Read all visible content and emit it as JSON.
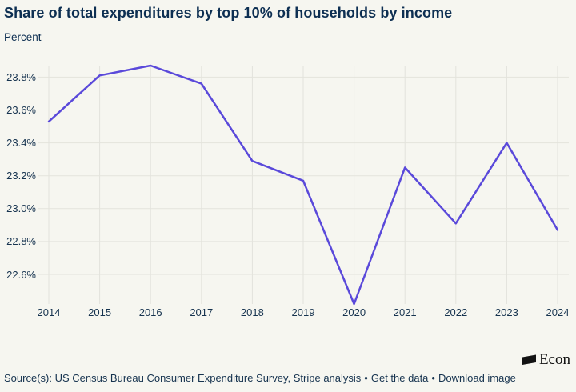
{
  "title": "Share of total expenditures by top 10% of households by income",
  "subtitle": "Percent",
  "footer": {
    "source_text": "Source(s): US Census Bureau Consumer Expenditure Survey, Stripe analysis",
    "separator": "•",
    "get_data_label": "Get the data",
    "download_label": "Download image",
    "brand": "Econ"
  },
  "colors": {
    "background": "#f6f6f0",
    "gridline": "#e3e3dc",
    "text": "#0d2f52",
    "line": "#5a49da",
    "logo": "#121212"
  },
  "chart_data": {
    "type": "line",
    "title": "Share of total expenditures by top 10% of households by income",
    "ylabel": "Percent",
    "xlabel": "",
    "x": [
      2014,
      2015,
      2016,
      2017,
      2018,
      2019,
      2020,
      2021,
      2022,
      2023,
      2024
    ],
    "values": [
      23.53,
      23.81,
      23.87,
      23.76,
      23.29,
      23.17,
      22.42,
      23.25,
      22.91,
      23.4,
      22.87
    ],
    "series_name": "Share of total expenditures by top 10% of households by income",
    "y_ticks": [
      22.6,
      22.8,
      23.0,
      23.2,
      23.4,
      23.6,
      23.8
    ],
    "y_tick_suffix": "%",
    "ylim": [
      22.42,
      23.87
    ],
    "grid": true,
    "legend": "none",
    "line_color": "#5a49da"
  }
}
